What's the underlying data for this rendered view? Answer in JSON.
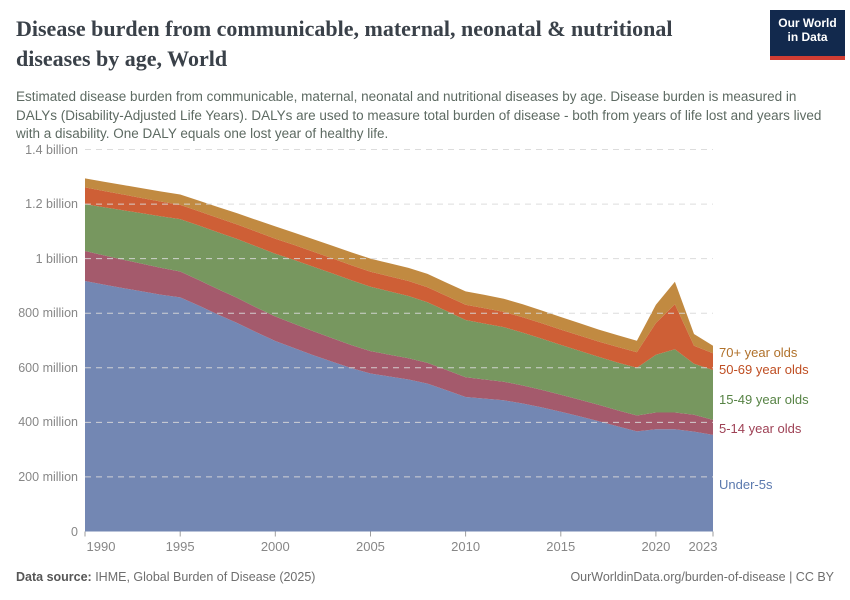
{
  "header": {
    "title_line1": "Disease burden from communicable, maternal, neonatal & nutritional",
    "title_line2": "diseases by age, World",
    "subtitle": "Estimated disease burden from communicable, maternal, neonatal and nutritional diseases by age. Disease burden is measured in DALYs (Disability-Adjusted Life Years). DALYs are used to measure total burden of disease - both from years of life lost and years lived with a disability. One DALY equals one lost year of healthy life.",
    "logo": {
      "line1": "Our World",
      "line2": "in Data",
      "bg_color": "#12294d",
      "accent_color": "#d13d33"
    }
  },
  "footer": {
    "source_label": "Data source:",
    "source_text": " IHME, Global Burden of Disease (2025)",
    "rights": "OurWorldinData.org/burden-of-disease | CC BY"
  },
  "chart_data": {
    "type": "area",
    "stacked": true,
    "title": "Disease burden from communicable, maternal, neonatal & nutritional diseases by age, World",
    "ylabel": "DALYs (Disability-Adjusted Life Years)",
    "unit": "millions of DALYs",
    "ylim": [
      0,
      1400
    ],
    "grid": "horizontal-dashed",
    "legend_position": "right-inline",
    "x": [
      1990,
      1991,
      1992,
      1993,
      1994,
      1995,
      1996,
      1997,
      1998,
      1999,
      2000,
      2001,
      2002,
      2003,
      2004,
      2005,
      2006,
      2007,
      2008,
      2009,
      2010,
      2011,
      2012,
      2013,
      2014,
      2015,
      2016,
      2017,
      2018,
      2019,
      2020,
      2021,
      2022,
      2023
    ],
    "series": [
      {
        "id": "under-5s",
        "name": "Under-5s",
        "color": "#7387b3",
        "label_color": "#5b79ae",
        "values": [
          918,
          905,
          892,
          880,
          868,
          858,
          827,
          795,
          764,
          730,
          698,
          672,
          646,
          622,
          599,
          579,
          568,
          557,
          542,
          518,
          493,
          487,
          481,
          469,
          455,
          439,
          422,
          404,
          385,
          367,
          375,
          375,
          366,
          354
        ]
      },
      {
        "id": "5-14-year-olds",
        "name": "5-14 year olds",
        "color": "#a45a6c",
        "label_color": "#9e4155",
        "values": [
          110,
          107,
          104,
          101,
          98,
          95,
          94,
          93,
          92,
          91,
          90,
          89,
          88,
          86,
          84,
          82,
          80,
          78,
          76,
          74,
          72,
          70,
          68,
          66,
          64,
          62,
          61,
          60,
          59,
          58,
          61,
          61,
          62,
          55
        ]
      },
      {
        "id": "15-49-year-olds",
        "name": "15-49 year olds",
        "color": "#77975f",
        "label_color": "#578345",
        "values": [
          172,
          176,
          181,
          185,
          189,
          192,
          200,
          208,
          216,
          224,
          230,
          234,
          236,
          238,
          238,
          236,
          232,
          228,
          222,
          216,
          210,
          205,
          200,
          194,
          188,
          183,
          179,
          176,
          175,
          175,
          212,
          232,
          187,
          183
        ]
      },
      {
        "id": "50-69-year-olds",
        "name": "50-69 year olds",
        "color": "#ce5f36",
        "label_color": "#bf4e22",
        "values": [
          61,
          60,
          58,
          56,
          54,
          52,
          52,
          53,
          53,
          54,
          55,
          55,
          55,
          55,
          55,
          55,
          55,
          55,
          55,
          55,
          56,
          56,
          56,
          56,
          56,
          56,
          56,
          56,
          57,
          57,
          116,
          165,
          66,
          61
        ]
      },
      {
        "id": "70plus-year-olds",
        "name": "70+ year olds",
        "color": "#c18a41",
        "label_color": "#b0712a",
        "values": [
          33,
          34,
          35,
          36,
          37,
          38,
          39,
          40,
          41,
          43,
          45,
          45,
          46,
          46,
          47,
          48,
          48,
          48,
          49,
          49,
          49,
          49,
          48,
          48,
          47,
          46,
          45,
          44,
          43,
          42,
          67,
          82,
          43,
          28
        ]
      }
    ],
    "yticks": [
      {
        "value": 1400,
        "label": "1.4 billion"
      },
      {
        "value": 1200,
        "label": "1.2 billion"
      },
      {
        "value": 1000,
        "label": "1 billion"
      },
      {
        "value": 800,
        "label": "800 million"
      },
      {
        "value": 600,
        "label": "600 million"
      },
      {
        "value": 400,
        "label": "400 million"
      },
      {
        "value": 200,
        "label": "200 million"
      },
      {
        "value": 0,
        "label": "0"
      }
    ],
    "xticks": [
      {
        "year": 1990,
        "label": "1990",
        "dx": 16
      },
      {
        "year": 1995,
        "label": "1995",
        "dx": 0
      },
      {
        "year": 2000,
        "label": "2000",
        "dx": 0
      },
      {
        "year": 2005,
        "label": "2005",
        "dx": 0
      },
      {
        "year": 2010,
        "label": "2010",
        "dx": 0
      },
      {
        "year": 2015,
        "label": "2015",
        "dx": 0
      },
      {
        "year": 2020,
        "label": "2020",
        "dx": 0
      },
      {
        "year": 2023,
        "label": "2023",
        "dx": -10
      }
    ],
    "legend": [
      {
        "id": "70plus-year-olds",
        "text": "70+ year olds",
        "color": "#b0712a",
        "y": 352
      },
      {
        "id": "50-69-year-olds",
        "text": "50-69 year olds",
        "color": "#bf4e22",
        "y": 369
      },
      {
        "id": "15-49-year-olds",
        "text": "15-49 year olds",
        "color": "#578345",
        "y": 399
      },
      {
        "id": "5-14-year-olds",
        "text": "5-14 year olds",
        "color": "#9e4155",
        "y": 428
      },
      {
        "id": "under-5s",
        "text": "Under-5s",
        "color": "#5b79ae",
        "y": 484
      }
    ]
  }
}
